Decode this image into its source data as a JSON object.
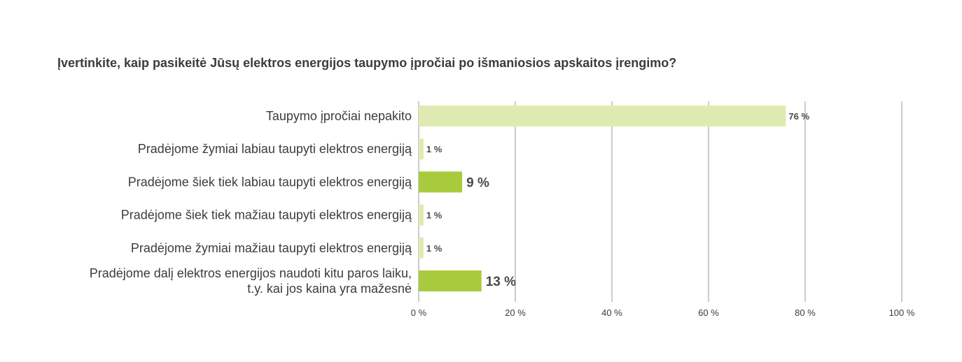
{
  "chart_data": {
    "type": "bar",
    "orientation": "horizontal",
    "title": "Įvertinkite, kaip pasikeitė Jūsų elektros energijos taupymo įpročiai po išmaniosios apskaitos įrengimo?",
    "categories": [
      [
        "Taupymo įpročiai nepakito"
      ],
      [
        "Pradėjome žymiai labiau taupyti elektros energiją"
      ],
      [
        "Pradėjome šiek tiek labiau taupyti elektros energiją"
      ],
      [
        "Pradėjome šiek tiek mažiau taupyti elektros energiją"
      ],
      [
        "Pradėjome žymiai mažiau taupyti elektros energiją"
      ],
      [
        "Pradėjome dalį elektros energijos naudoti kitu paros laiku,",
        "t.y. kai jos kaina yra mažesnė"
      ]
    ],
    "values": [
      76,
      1,
      9,
      1,
      1,
      13
    ],
    "value_labels": [
      "76 %",
      "1 %",
      "9 %",
      "1 %",
      "1 %",
      "13 %"
    ],
    "highlighted": [
      false,
      false,
      true,
      false,
      false,
      true
    ],
    "xlim": [
      0,
      100
    ],
    "xticks": [
      0,
      20,
      40,
      60,
      80,
      100
    ],
    "xtick_labels": [
      "0 %",
      "20 %",
      "40 %",
      "60 %",
      "80 %",
      "100 %"
    ],
    "xlabel": "",
    "ylabel": "",
    "grid": true,
    "colors": {
      "bar_light": "#dfeab2",
      "bar_highlight": "#a9ca3c",
      "gridline": "#9a9a9a",
      "text": "#3c3c3c"
    }
  }
}
